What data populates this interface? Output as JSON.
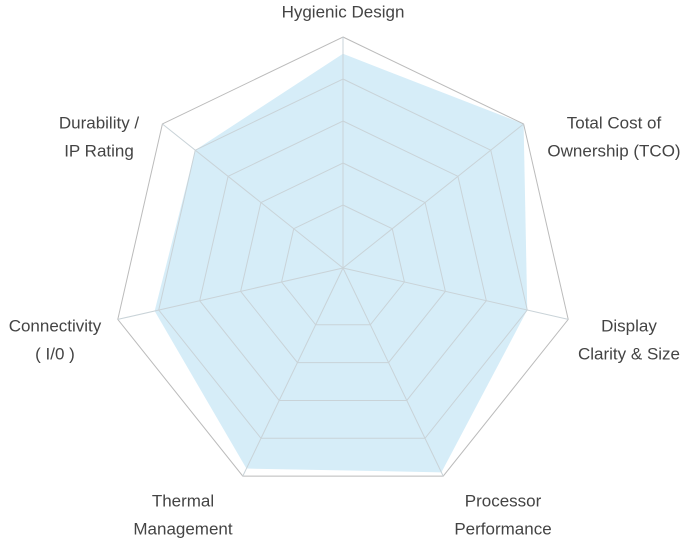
{
  "chart_data": {
    "type": "radar",
    "categories": [
      [
        "Hygienic Design"
      ],
      [
        "Total Cost of",
        "Ownership (TCO)"
      ],
      [
        "Display",
        "Clarity & Size"
      ],
      [
        "Processor",
        "Performance"
      ],
      [
        "Thermal",
        "Management"
      ],
      [
        "Connectivity",
        "( I/0 )"
      ],
      [
        "Durability /",
        "IP Rating"
      ]
    ],
    "values": [
      9.6,
      10,
      9,
      9.9,
      9.8,
      9.1,
      9
    ],
    "color": "#d6edf8",
    "ylim": [
      4.5,
      10
    ],
    "yticks": [
      6,
      7,
      8,
      9,
      10
    ],
    "grid": true
  }
}
